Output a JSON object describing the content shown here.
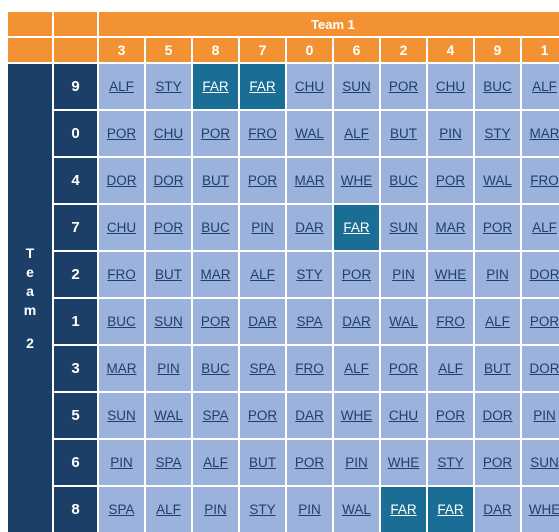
{
  "team1": {
    "label": "Team 1",
    "numbers": [
      "3",
      "5",
      "8",
      "7",
      "0",
      "6",
      "2",
      "4",
      "9",
      "1"
    ]
  },
  "team2": {
    "label_chars": [
      "T",
      "e",
      "a",
      "m"
    ],
    "label_number": "2",
    "numbers": [
      "9",
      "0",
      "4",
      "7",
      "2",
      "1",
      "3",
      "5",
      "6",
      "8"
    ]
  },
  "rows": [
    [
      "ALF",
      "STY",
      "FAR",
      "FAR",
      "CHU",
      "SUN",
      "POR",
      "CHU",
      "BUC",
      "ALF"
    ],
    [
      "POR",
      "CHU",
      "POR",
      "FRO",
      "WAL",
      "ALF",
      "BUT",
      "PIN",
      "STY",
      "MAR"
    ],
    [
      "DOR",
      "DOR",
      "BUT",
      "POR",
      "MAR",
      "WHE",
      "BUC",
      "POR",
      "WAL",
      "FRO"
    ],
    [
      "CHU",
      "POR",
      "BUC",
      "PIN",
      "DAR",
      "FAR",
      "SUN",
      "MAR",
      "POR",
      "ALF"
    ],
    [
      "FRO",
      "BUT",
      "MAR",
      "ALF",
      "STY",
      "POR",
      "PIN",
      "WHE",
      "PIN",
      "DOR"
    ],
    [
      "BUC",
      "SUN",
      "POR",
      "DAR",
      "SPA",
      "DAR",
      "WAL",
      "FRO",
      "ALF",
      "POR"
    ],
    [
      "MAR",
      "PIN",
      "BUC",
      "SPA",
      "FRO",
      "ALF",
      "POR",
      "ALF",
      "BUT",
      "DOR"
    ],
    [
      "SUN",
      "WAL",
      "SPA",
      "POR",
      "DAR",
      "WHE",
      "CHU",
      "POR",
      "DOR",
      "PIN"
    ],
    [
      "PIN",
      "SPA",
      "ALF",
      "BUT",
      "POR",
      "PIN",
      "WHE",
      "STY",
      "POR",
      "SUN"
    ],
    [
      "SPA",
      "ALF",
      "PIN",
      "STY",
      "PIN",
      "WAL",
      "FAR",
      "FAR",
      "DAR",
      "WHE"
    ]
  ],
  "highlighted": [
    [
      0,
      2
    ],
    [
      0,
      3
    ],
    [
      3,
      5
    ],
    [
      9,
      6
    ],
    [
      9,
      7
    ]
  ],
  "colors": {
    "orange": "#f39232",
    "navy": "#1b3f66",
    "cell": "#9bb3dc",
    "highlight": "#1a6e96"
  }
}
